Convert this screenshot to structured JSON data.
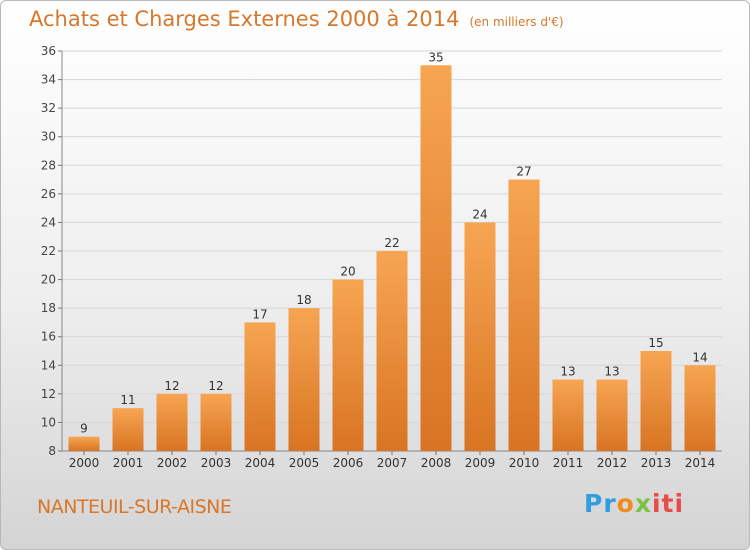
{
  "title": "Achats et Charges Externes 2000 à 2014",
  "unit": "(en milliers d'€)",
  "town": "NANTEUIL-SUR-AISNE",
  "logo_parts": [
    "Pr",
    "o",
    "x",
    "iti"
  ],
  "colors": {
    "bar_light": "#f7a552",
    "bar_dark": "#d87423",
    "accent": "#d8772a",
    "grid": "#d6d6d6"
  },
  "chart_data": {
    "type": "bar",
    "title": "Achats et Charges Externes 2000 à 2014",
    "subtitle": "(en milliers d'€)",
    "categories": [
      "2000",
      "2001",
      "2002",
      "2003",
      "2004",
      "2005",
      "2006",
      "2007",
      "2008",
      "2009",
      "2010",
      "2011",
      "2012",
      "2013",
      "2014"
    ],
    "values": [
      9,
      11,
      12,
      12,
      17,
      18,
      20,
      22,
      35,
      24,
      27,
      13,
      13,
      15,
      14
    ],
    "ylim": [
      8,
      36
    ],
    "yticks": [
      8,
      10,
      12,
      14,
      16,
      18,
      20,
      22,
      24,
      26,
      28,
      30,
      32,
      34,
      36
    ],
    "grid": true,
    "data_labels": true,
    "xlabel": "",
    "ylabel": ""
  }
}
